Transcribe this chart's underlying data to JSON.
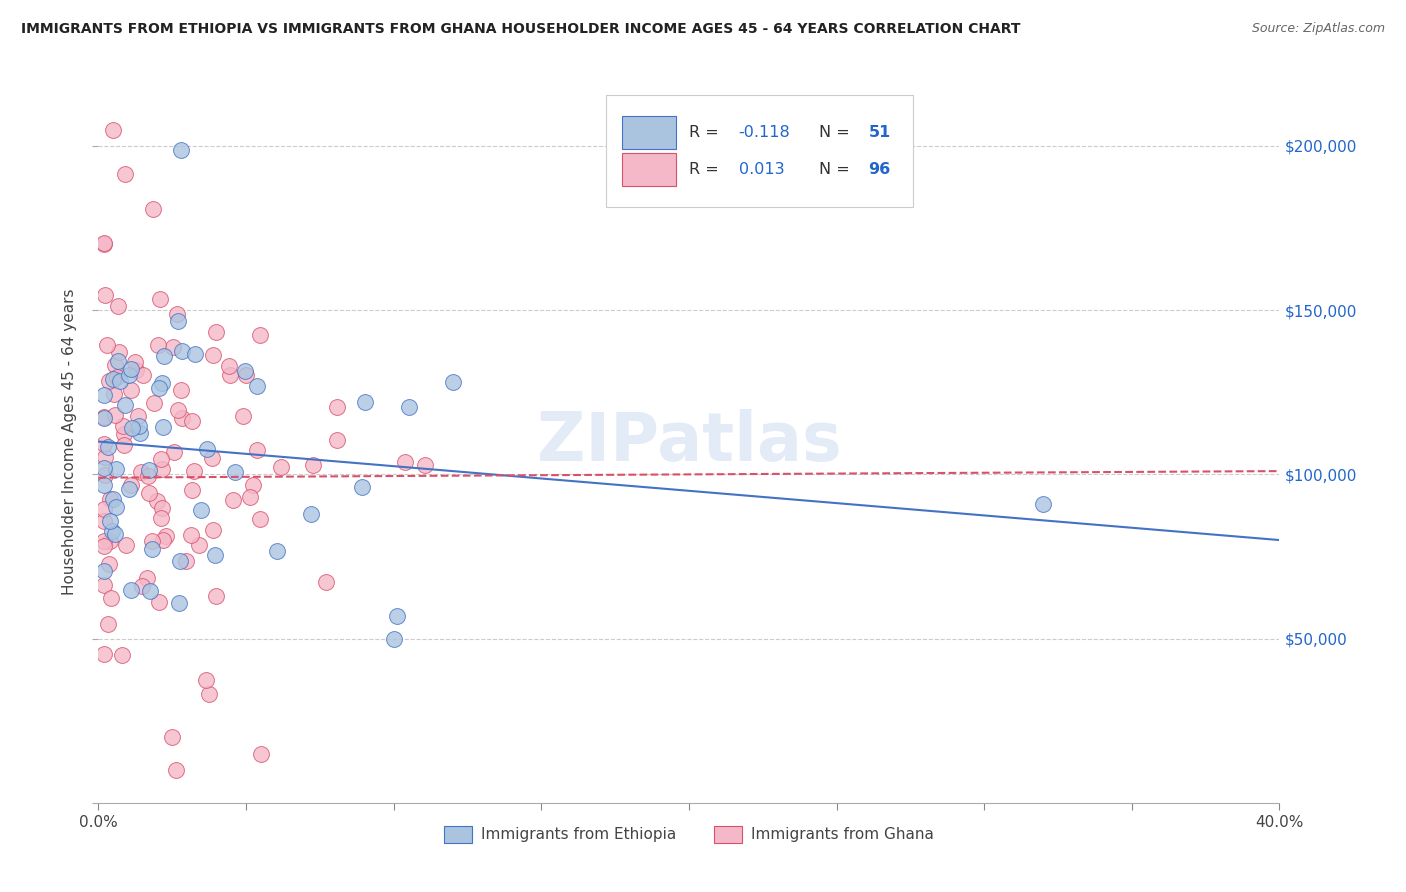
{
  "title": "IMMIGRANTS FROM ETHIOPIA VS IMMIGRANTS FROM GHANA HOUSEHOLDER INCOME AGES 45 - 64 YEARS CORRELATION CHART",
  "source": "Source: ZipAtlas.com",
  "ylabel": "Householder Income Ages 45 - 64 years",
  "legend_label1": "Immigrants from Ethiopia",
  "legend_label2": "Immigrants from Ghana",
  "xlim": [
    0.0,
    0.4
  ],
  "ylim": [
    0,
    220000
  ],
  "xtick_left_label": "0.0%",
  "xtick_right_label": "40.0%",
  "yticks": [
    0,
    50000,
    100000,
    150000,
    200000
  ],
  "yticklabels": [
    "",
    "$50,000",
    "$100,000",
    "$150,000",
    "$200,000"
  ],
  "color_ethiopia": "#aac4e0",
  "color_ghana": "#f4b8c8",
  "edge_color_ethiopia": "#4472c4",
  "edge_color_ghana": "#d9506a",
  "line_color_ethiopia": "#4472c4",
  "line_color_ghana": "#d9506a",
  "watermark": "ZIPatlas",
  "r_ethiopia": -0.118,
  "n_ethiopia": 51,
  "r_ghana": 0.013,
  "n_ghana": 96,
  "background_color": "#ffffff",
  "grid_color": "#cccccc",
  "title_color": "#222222",
  "source_color": "#666666",
  "right_tick_color": "#2266cc"
}
